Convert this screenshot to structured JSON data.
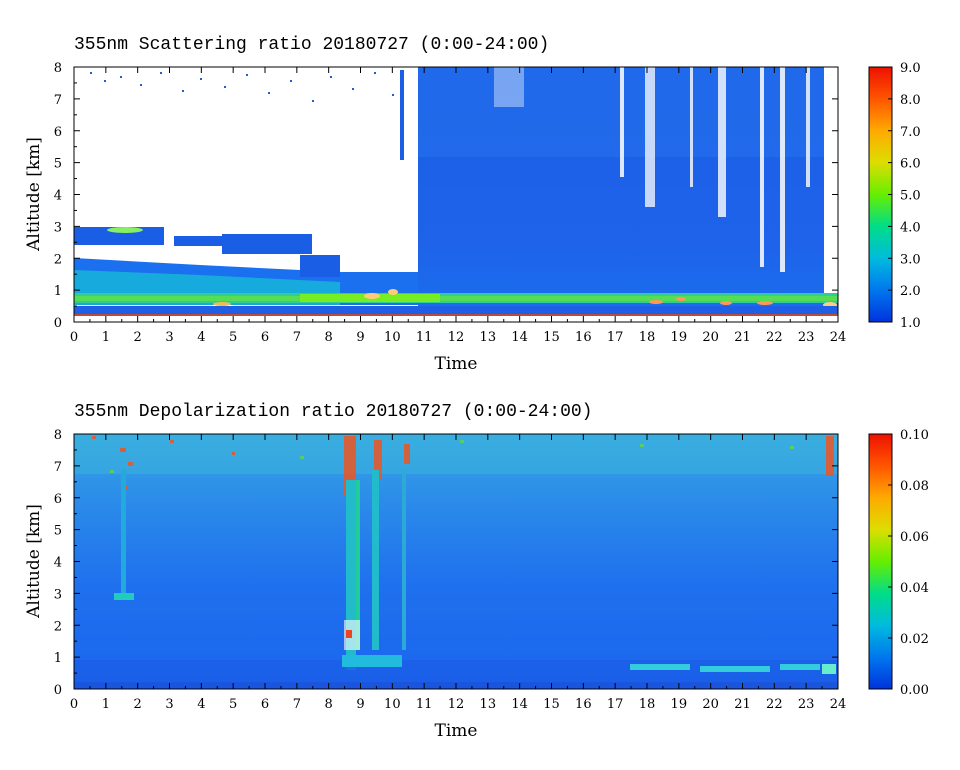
{
  "chart_data": [
    {
      "type": "heatmap",
      "title": "355nm Scattering ratio  20180727 (0:00-24:00)",
      "xlabel": "Time",
      "ylabel": "Altitude [km]",
      "xlim": [
        0,
        24
      ],
      "ylim": [
        0,
        8
      ],
      "x_ticks": [
        0,
        1,
        2,
        3,
        4,
        5,
        6,
        7,
        8,
        9,
        10,
        11,
        12,
        13,
        14,
        15,
        16,
        17,
        18,
        19,
        20,
        21,
        22,
        23,
        24
      ],
      "y_ticks": [
        0,
        1,
        2,
        3,
        4,
        5,
        6,
        7,
        8
      ],
      "colorbar": {
        "range": [
          1.0,
          9.0
        ],
        "ticks": [
          "1.0",
          "2.0",
          "3.0",
          "4.0",
          "5.0",
          "6.0",
          "7.0",
          "8.0",
          "9.0"
        ],
        "colors": [
          "#0033dd",
          "#0077ee",
          "#00bbdd",
          "#00dd88",
          "#66ee00",
          "#dddd00",
          "#ffaa00",
          "#ff5500",
          "#ee1100"
        ]
      }
    },
    {
      "type": "heatmap",
      "title": "355nm Depolarization ratio  20180727 (0:00-24:00)",
      "xlabel": "Time",
      "ylabel": "Altitude [km]",
      "xlim": [
        0,
        24
      ],
      "ylim": [
        0,
        8
      ],
      "x_ticks": [
        0,
        1,
        2,
        3,
        4,
        5,
        6,
        7,
        8,
        9,
        10,
        11,
        12,
        13,
        14,
        15,
        16,
        17,
        18,
        19,
        20,
        21,
        22,
        23,
        24
      ],
      "y_ticks": [
        0,
        1,
        2,
        3,
        4,
        5,
        6,
        7,
        8
      ],
      "colorbar": {
        "range": [
          0.0,
          0.1
        ],
        "ticks": [
          "0.00",
          "0.02",
          "0.04",
          "0.06",
          "0.08",
          "0.10"
        ],
        "colors": [
          "#0033dd",
          "#0077ee",
          "#00bbdd",
          "#00dd88",
          "#66ee00",
          "#dddd00",
          "#ffaa00",
          "#ff5500",
          "#ee1100"
        ]
      }
    }
  ]
}
